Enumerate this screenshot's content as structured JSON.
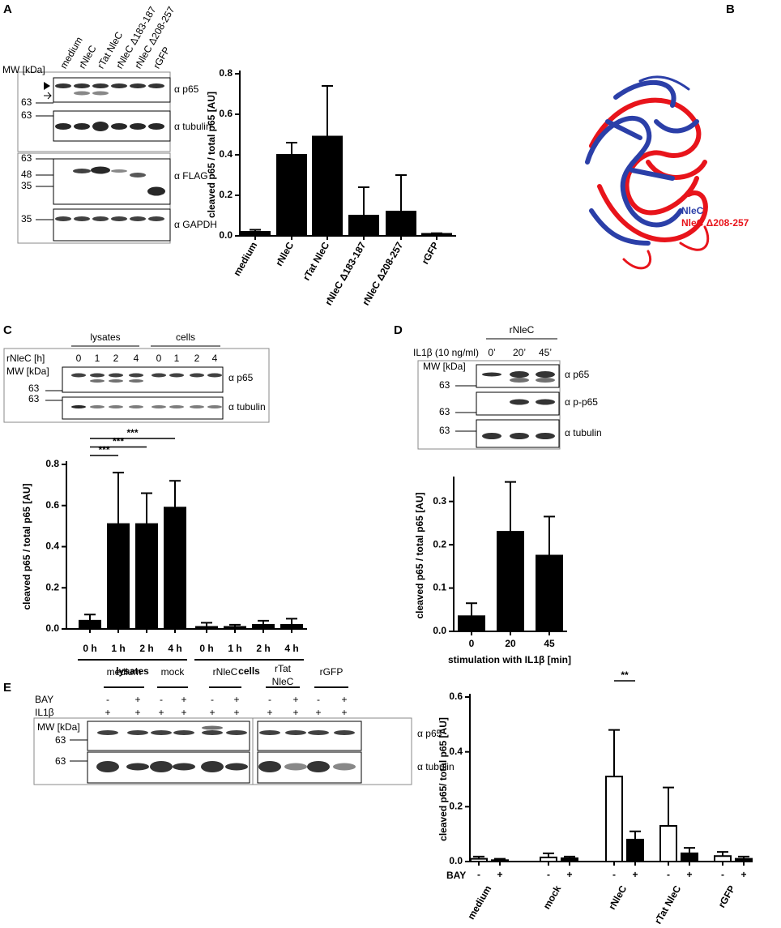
{
  "panels": {
    "a": "A",
    "b": "B",
    "c": "C",
    "d": "D",
    "e": "E"
  },
  "blot_a": {
    "mw_label": "MW [kDa]",
    "lanes": [
      "medium",
      "rNleC",
      "rTat NleC",
      "rNleC Δ183-187",
      "rNleC Δ208-257",
      "rGFP"
    ],
    "mw_markers": [
      "63",
      "63",
      "63",
      "48",
      "35",
      "35"
    ],
    "antibodies": [
      "α p65",
      "α tubulin",
      "α FLAG",
      "α GAPDH"
    ]
  },
  "structure_b": {
    "legend": [
      "NleC",
      "NleC Δ208-257"
    ]
  },
  "blot_c": {
    "groups": [
      "lysates",
      "cells"
    ],
    "row_label": "rNleC [h]",
    "lanes": [
      "0",
      "1",
      "2",
      "4",
      "0",
      "1",
      "2",
      "4"
    ],
    "mw_label": "MW [kDa]",
    "mw_markers": [
      "63",
      "63"
    ],
    "antibodies": [
      "α p65",
      "α tubulin"
    ]
  },
  "blot_d": {
    "header": "rNleC",
    "row_label": "IL1β (10 ng/ml)",
    "lanes": [
      "0’",
      "20’",
      "45’"
    ],
    "mw_label": "MW [kDa]",
    "mw_markers": [
      "63",
      "63",
      "63"
    ],
    "antibodies": [
      "α p65",
      "α p-p65",
      "α tubulin"
    ]
  },
  "blot_e": {
    "groups": [
      [
        "medium"
      ],
      [
        "mock"
      ],
      [
        "rNleC"
      ],
      [
        "rTat",
        "NleC"
      ],
      [
        "rGFP"
      ]
    ],
    "rows": [
      {
        "label": "BAY",
        "signs": [
          "-",
          "+",
          "-",
          "+",
          "-",
          "+",
          "-",
          "+",
          "-",
          "+"
        ]
      },
      {
        "label": "IL1β",
        "signs": [
          "+",
          "+",
          "+",
          "+",
          "+",
          "+",
          "+",
          "+",
          "+",
          "+"
        ]
      }
    ],
    "mw_label": "MW [kDa]",
    "mw_markers": [
      "63",
      "63"
    ],
    "antibodies": [
      "α p65",
      "α tubulin"
    ]
  },
  "chart_data": [
    {
      "type": "bar",
      "ylabel": "cleaved p65 / total p65 [AU]",
      "categories": [
        "medium",
        "rNleC",
        "rTat NleC",
        "rNleC Δ183-187",
        "rNleC Δ208-257",
        "rGFP"
      ],
      "values": [
        0.02,
        0.4,
        0.49,
        0.1,
        0.12,
        0.01
      ],
      "errors": [
        0.01,
        0.06,
        0.25,
        0.14,
        0.18,
        0.003
      ],
      "color": "#000000",
      "ylim": [
        0,
        0.8
      ],
      "yticks": [
        {
          "value": 0,
          "label": "0.0"
        },
        0.2,
        0.4,
        0.6,
        0.8
      ]
    },
    {
      "type": "bar",
      "ylabel": "cleaved p65 / total p65 [AU]",
      "categories": [
        "0 h",
        "1 h",
        "2 h",
        "4 h",
        "0 h",
        "1 h",
        "2 h",
        "4 h"
      ],
      "groups": [
        "lysates",
        "cells"
      ],
      "values": [
        0.04,
        0.51,
        0.51,
        0.59,
        0.01,
        0.01,
        0.02,
        0.02
      ],
      "errors": [
        0.03,
        0.25,
        0.15,
        0.13,
        0.02,
        0.01,
        0.02,
        0.03
      ],
      "annotations": [
        "***",
        "***",
        "***"
      ],
      "color": "#000000",
      "ylim": [
        0,
        0.8
      ],
      "yticks": [
        {
          "value": 0,
          "label": "0.0"
        },
        0.2,
        0.4,
        0.6,
        0.8
      ]
    },
    {
      "type": "bar",
      "ylabel": "cleaved p65 / total p65 [AU]",
      "xlabel": "stimulation with IL1β [min]",
      "categories": [
        "0",
        "20",
        "45"
      ],
      "values": [
        0.035,
        0.23,
        0.175
      ],
      "errors": [
        0.03,
        0.115,
        0.09
      ],
      "color": "#000000",
      "ylim": [
        0,
        0.35
      ],
      "yticks": [
        {
          "value": 0,
          "label": "0.0"
        },
        0.1,
        0.2,
        0.3
      ]
    },
    {
      "type": "grouped_bar",
      "ylabel": "cleaved p65/ total p65 [AU]",
      "row_label": "BAY",
      "categories": [
        "medium",
        "mock",
        "rNleC",
        "rTat NleC",
        "rGFP"
      ],
      "series": [
        {
          "name": "-",
          "color": "#ffffff",
          "values": [
            0.01,
            0.015,
            0.31,
            0.13,
            0.02
          ],
          "errors": [
            0.008,
            0.015,
            0.17,
            0.14,
            0.015
          ]
        },
        {
          "name": "+",
          "color": "#000000",
          "values": [
            0.005,
            0.012,
            0.08,
            0.03,
            0.01
          ],
          "errors": [
            0.005,
            0.006,
            0.03,
            0.02,
            0.008
          ]
        }
      ],
      "annotations": [
        "**"
      ],
      "ylim": [
        0,
        0.6
      ],
      "yticks": [
        {
          "value": 0,
          "label": "0.0"
        },
        0.2,
        0.4,
        0.6
      ]
    }
  ]
}
